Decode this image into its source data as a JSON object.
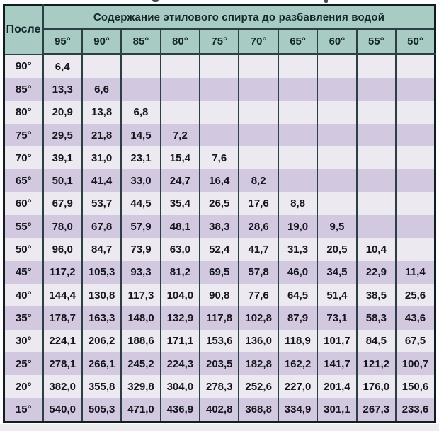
{
  "table": {
    "corner_label": "После",
    "span_header": "Содержание этилового спирта до разбавления водой",
    "col_headers": [
      "95°",
      "90°",
      "85°",
      "80°",
      "75°",
      "70°",
      "65°",
      "60°",
      "55°",
      "50°"
    ],
    "rows": [
      {
        "label": "90°",
        "values": [
          "6,4"
        ]
      },
      {
        "label": "85°",
        "values": [
          "13,3",
          "6,6"
        ]
      },
      {
        "label": "80°",
        "values": [
          "20,9",
          "13,8",
          "6,8"
        ]
      },
      {
        "label": "75°",
        "values": [
          "29,5",
          "21,8",
          "14,5",
          "7,2"
        ]
      },
      {
        "label": "70°",
        "values": [
          "39,1",
          "31,0",
          "23,1",
          "15,4",
          "7,6"
        ]
      },
      {
        "label": "65°",
        "values": [
          "50,1",
          "41,4",
          "33,0",
          "24,7",
          "16,4",
          "8,2"
        ]
      },
      {
        "label": "60°",
        "values": [
          "67,9",
          "53,7",
          "44,5",
          "35,4",
          "26,5",
          "17,6",
          "8,8"
        ]
      },
      {
        "label": "55°",
        "values": [
          "78,0",
          "67,8",
          "57,9",
          "48,1",
          "38,3",
          "28,6",
          "19,0",
          "9,5"
        ]
      },
      {
        "label": "50°",
        "values": [
          "96,0",
          "84,7",
          "73,9",
          "63,0",
          "52,4",
          "41,7",
          "31,3",
          "20,5",
          "10,4"
        ]
      },
      {
        "label": "45°",
        "values": [
          "117,2",
          "105,3",
          "93,3",
          "81,2",
          "69,5",
          "57,8",
          "46,0",
          "34,5",
          "22,9",
          "11,4"
        ]
      },
      {
        "label": "40°",
        "values": [
          "144,4",
          "130,8",
          "117,3",
          "104,0",
          "90,8",
          "77,6",
          "64,5",
          "51,4",
          "38,5",
          "25,6"
        ]
      },
      {
        "label": "35°",
        "values": [
          "178,7",
          "163,3",
          "148,0",
          "132,9",
          "117,8",
          "102,8",
          "87,9",
          "73,1",
          "58,3",
          "43,6"
        ]
      },
      {
        "label": "30°",
        "values": [
          "224,1",
          "206,2",
          "188,6",
          "171,1",
          "153,6",
          "136,0",
          "118,9",
          "101,7",
          "84,5",
          "67,5"
        ]
      },
      {
        "label": "25°",
        "values": [
          "278,1",
          "266,1",
          "245,2",
          "224,3",
          "203,5",
          "182,8",
          "162,2",
          "141,7",
          "121,2",
          "100,7"
        ]
      },
      {
        "label": "20°",
        "values": [
          "382,0",
          "355,8",
          "329,8",
          "304,0",
          "278,3",
          "252,6",
          "227,0",
          "201,4",
          "176,0",
          "150,6"
        ]
      },
      {
        "label": "15°",
        "values": [
          "540,0",
          "505,3",
          "471,0",
          "436,9",
          "402,8",
          "368,8",
          "334,9",
          "301,1",
          "267,3",
          "233,6"
        ]
      }
    ],
    "colors": {
      "header_bg": "#a8cbc4",
      "header_text": "#13262a",
      "row_even_bg": "#eceaf0",
      "row_odd_bg": "#d2c9e0",
      "cell_text": "#15161e",
      "inner_border": "#2a4044",
      "outer_border": "#101e21"
    }
  },
  "chart_data": {
    "type": "table",
    "title": "Содержание этилового спирта до разбавления водой",
    "row_axis_label": "После",
    "columns": [
      95,
      90,
      85,
      80,
      75,
      70,
      65,
      60,
      55,
      50
    ],
    "row_labels": [
      90,
      85,
      80,
      75,
      70,
      65,
      60,
      55,
      50,
      45,
      40,
      35,
      30,
      25,
      20,
      15
    ],
    "rows": [
      [
        6.4,
        null,
        null,
        null,
        null,
        null,
        null,
        null,
        null,
        null
      ],
      [
        13.3,
        6.6,
        null,
        null,
        null,
        null,
        null,
        null,
        null,
        null
      ],
      [
        20.9,
        13.8,
        6.8,
        null,
        null,
        null,
        null,
        null,
        null,
        null
      ],
      [
        29.5,
        21.8,
        14.5,
        7.2,
        null,
        null,
        null,
        null,
        null,
        null
      ],
      [
        39.1,
        31.0,
        23.1,
        15.4,
        7.6,
        null,
        null,
        null,
        null,
        null
      ],
      [
        50.1,
        41.4,
        33.0,
        24.7,
        16.4,
        8.2,
        null,
        null,
        null,
        null
      ],
      [
        67.9,
        53.7,
        44.5,
        35.4,
        26.5,
        17.6,
        8.8,
        null,
        null,
        null
      ],
      [
        78.0,
        67.8,
        57.9,
        48.1,
        38.3,
        28.6,
        19.0,
        9.5,
        null,
        null
      ],
      [
        96.0,
        84.7,
        73.9,
        63.0,
        52.4,
        41.7,
        31.3,
        20.5,
        10.4,
        null
      ],
      [
        117.2,
        105.3,
        93.3,
        81.2,
        69.5,
        57.8,
        46.0,
        34.5,
        22.9,
        11.4
      ],
      [
        144.4,
        130.8,
        117.3,
        104.0,
        90.8,
        77.6,
        64.5,
        51.4,
        38.5,
        25.6
      ],
      [
        178.7,
        163.3,
        148.0,
        132.9,
        117.8,
        102.8,
        87.9,
        73.1,
        58.3,
        43.6
      ],
      [
        224.1,
        206.2,
        188.6,
        171.1,
        153.6,
        136.0,
        118.9,
        101.7,
        84.5,
        67.5
      ],
      [
        278.1,
        266.1,
        245.2,
        224.3,
        203.5,
        182.8,
        162.2,
        141.7,
        121.2,
        100.7
      ],
      [
        382.0,
        355.8,
        329.8,
        304.0,
        278.3,
        252.6,
        227.0,
        201.4,
        176.0,
        150.6
      ],
      [
        540.0,
        505.3,
        471.0,
        436.9,
        402.8,
        368.8,
        334.9,
        301.1,
        267.3,
        233.6
      ]
    ]
  }
}
